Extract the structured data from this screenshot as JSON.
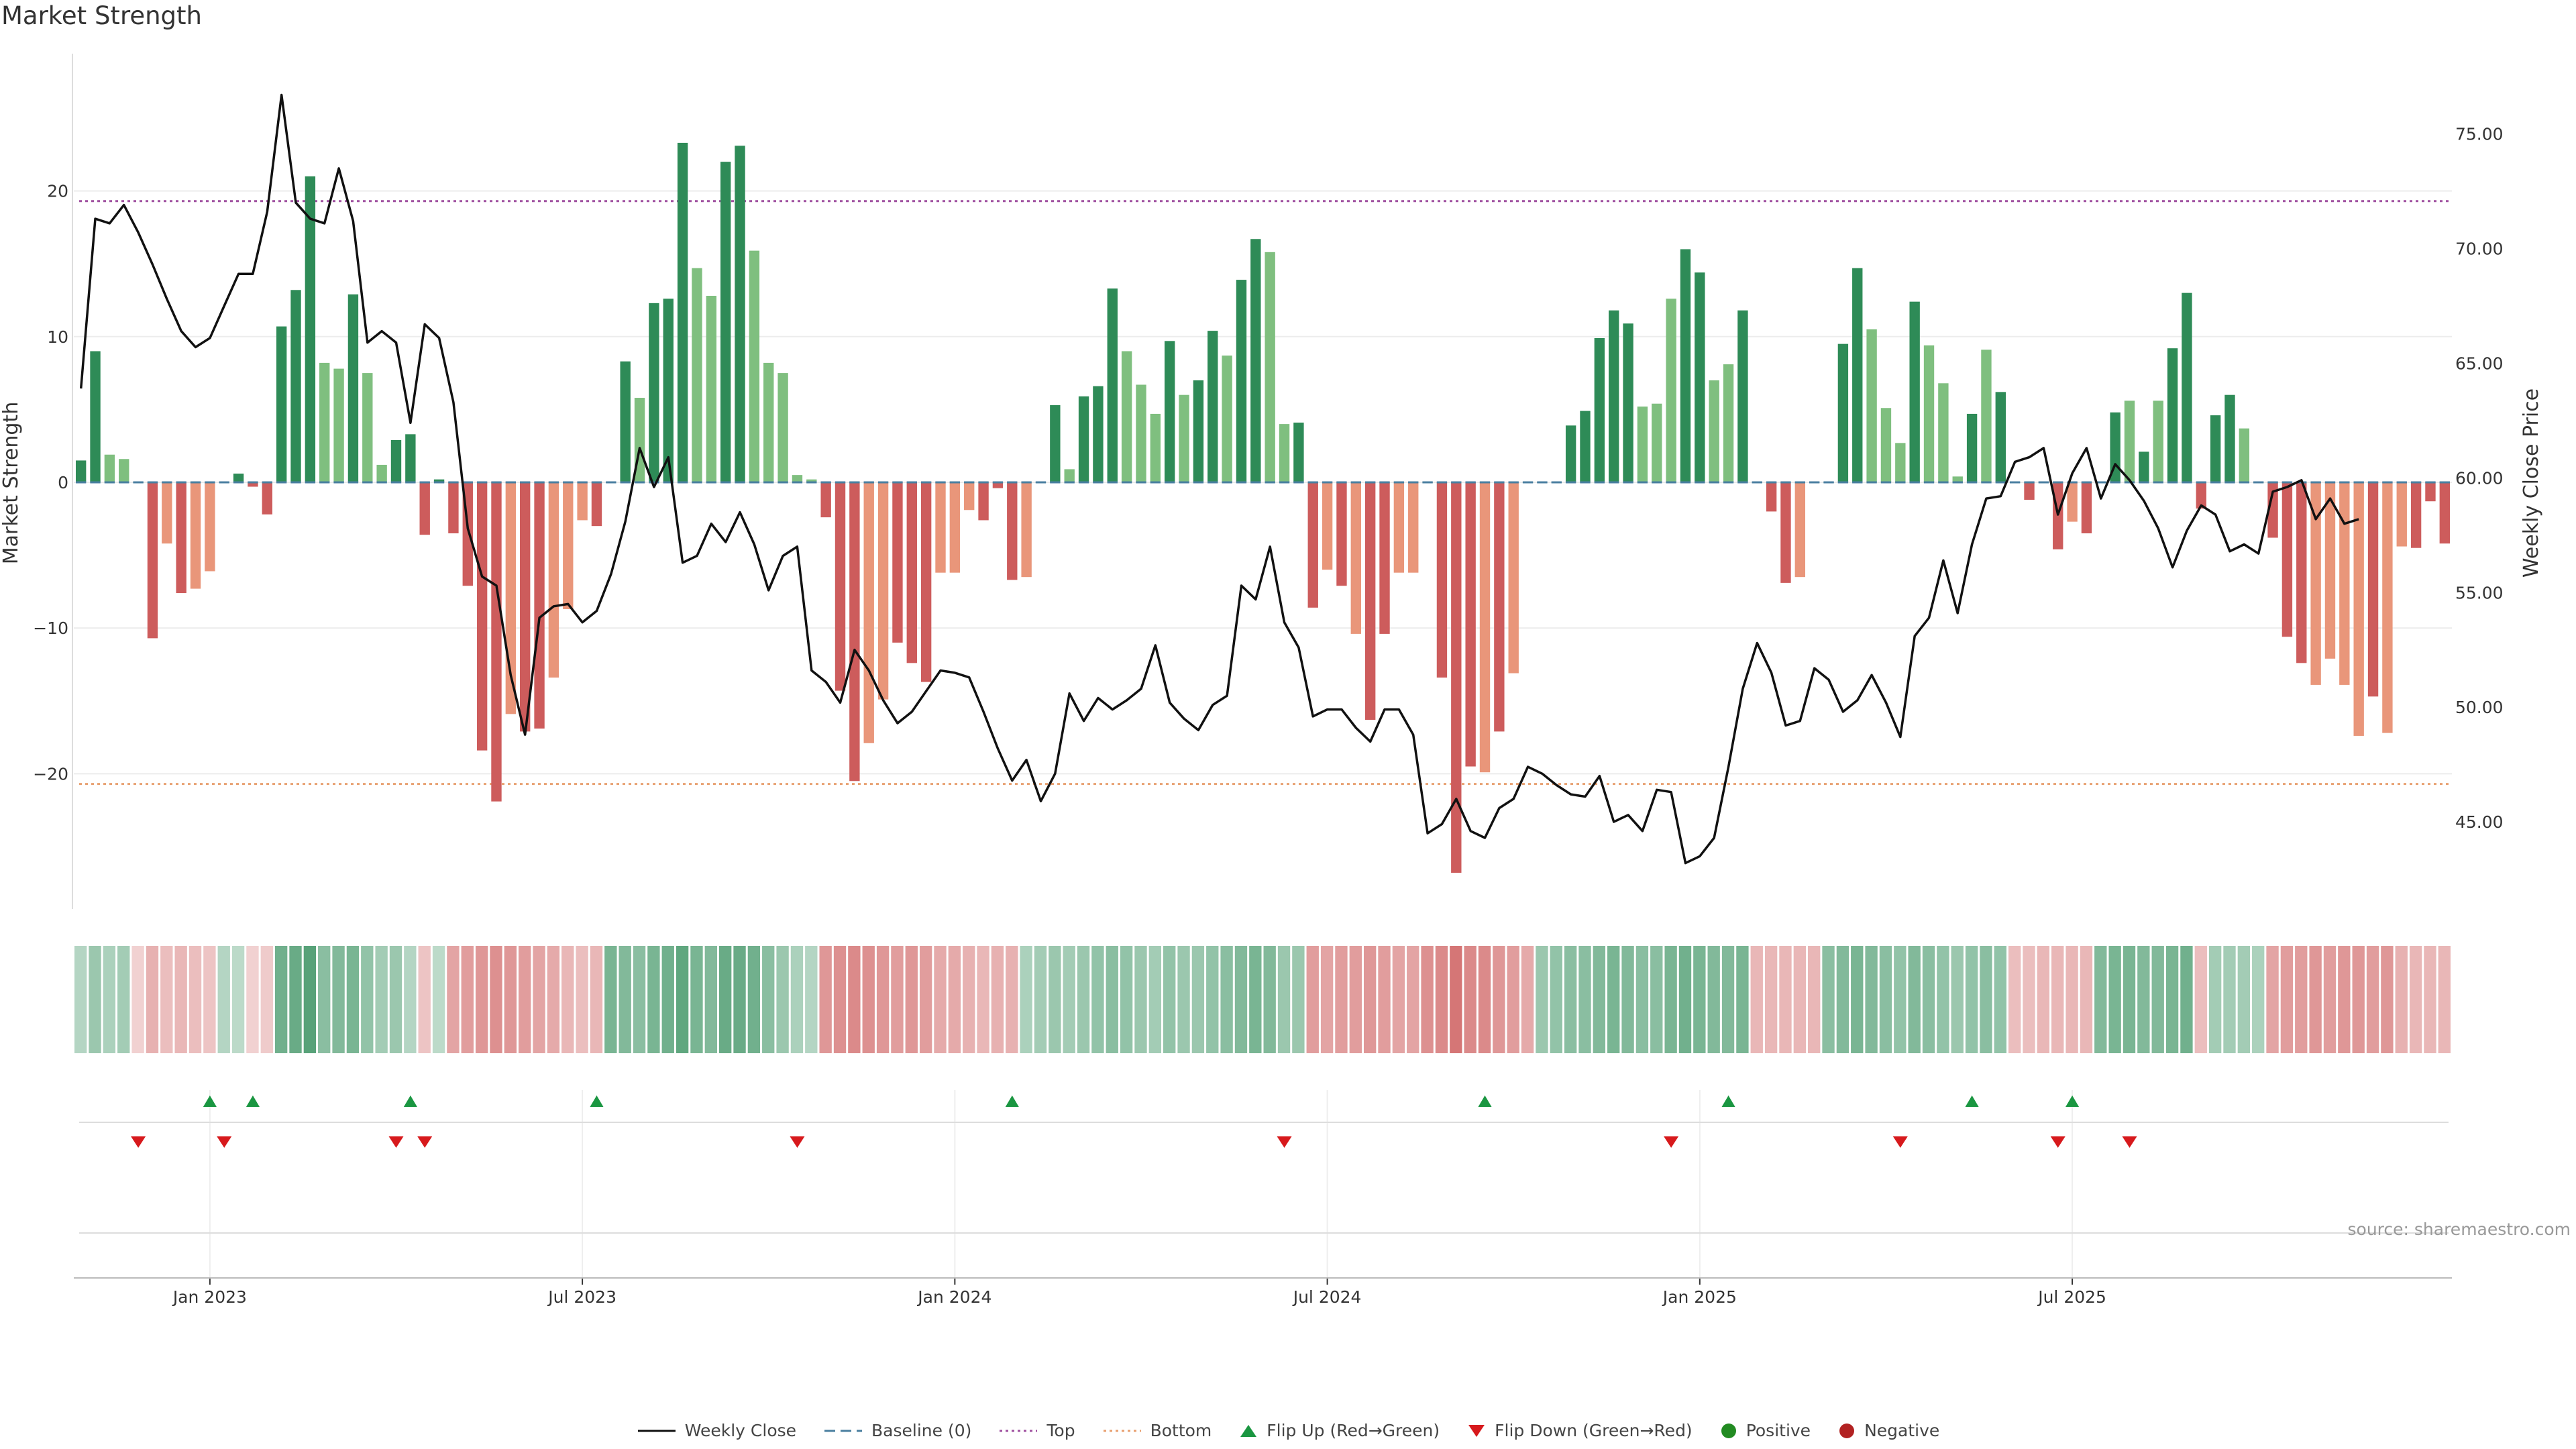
{
  "title": "Market Strength",
  "source": "source: sharemaestro.com",
  "chart_data": {
    "type": "bar",
    "title": "Market Strength",
    "ylabel_left": "Market Strength",
    "ylabel_right": "Weekly Close Price",
    "ylim_left": [
      -29.2,
      29.5
    ],
    "ylim_right": [
      41.2,
      78.5
    ],
    "yticks_left": [
      {
        "v": 20,
        "label": "20"
      },
      {
        "v": 10,
        "label": "10"
      },
      {
        "v": 0,
        "label": "0"
      },
      {
        "v": -10,
        "label": "−10"
      },
      {
        "v": -20,
        "label": "−20"
      }
    ],
    "yticks_right": [
      {
        "v": 75,
        "label": "75.00"
      },
      {
        "v": 70,
        "label": "70.00"
      },
      {
        "v": 65,
        "label": "65.00"
      },
      {
        "v": 60,
        "label": "60.00"
      },
      {
        "v": 55,
        "label": "55.00"
      },
      {
        "v": 50,
        "label": "50.00"
      },
      {
        "v": 45,
        "label": "45.00"
      }
    ],
    "x_ticks": [
      {
        "week": 9.5,
        "label": "Jan 2023"
      },
      {
        "week": 35.5,
        "label": "Jul 2023"
      },
      {
        "week": 61.5,
        "label": "Jan 2024"
      },
      {
        "week": 87.5,
        "label": "Jul 2024"
      },
      {
        "week": 113.5,
        "label": "Jan 2025"
      },
      {
        "week": 139.5,
        "label": "Jul 2025"
      }
    ],
    "top_threshold": 19.3,
    "bottom_threshold": -20.7,
    "strength": [
      1.5,
      9,
      1.9,
      1.6,
      0,
      -10.7,
      -4.2,
      -7.6,
      -7.3,
      -6.1,
      0,
      0.6,
      -0.3,
      -2.2,
      10.7,
      13.2,
      21,
      8.2,
      7.8,
      12.9,
      7.5,
      1.2,
      2.9,
      3.3,
      -3.6,
      0.2,
      -3.5,
      -7.1,
      -18.4,
      -21.9,
      -15.9,
      -17.1,
      -16.9,
      -13.4,
      -8.7,
      -2.6,
      -3,
      0,
      8.3,
      5.8,
      12.3,
      12.6,
      23.3,
      14.7,
      12.8,
      22,
      23.1,
      15.9,
      8.2,
      7.5,
      0.5,
      0.2,
      -2.4,
      -14.3,
      -20.5,
      -17.9,
      -14.9,
      -11,
      -12.4,
      -13.7,
      -6.2,
      -6.2,
      -1.9,
      -2.6,
      -0.4,
      -6.7,
      -6.5,
      0,
      5.3,
      0.9,
      5.9,
      6.6,
      13.3,
      9,
      6.7,
      4.7,
      9.7,
      6,
      7,
      10.4,
      8.7,
      13.9,
      16.7,
      15.8,
      4,
      4.1,
      -8.6,
      -6,
      -7.1,
      -10.4,
      -16.3,
      -10.4,
      -6.2,
      -6.2,
      0,
      -13.4,
      -26.8,
      -19.5,
      -19.9,
      -17.1,
      -13.1,
      0,
      0,
      0,
      3.9,
      4.9,
      9.9,
      11.8,
      10.9,
      5.2,
      5.4,
      12.6,
      16,
      14.4,
      7,
      8.1,
      11.8,
      0,
      -2,
      -6.9,
      -6.5,
      0,
      0,
      9.5,
      14.7,
      10.5,
      5.1,
      2.7,
      12.4,
      9.4,
      6.8,
      0.4,
      4.7,
      9.1,
      6.2,
      0,
      -1.2,
      0,
      -4.6,
      -2.7,
      -3.5,
      0,
      4.8,
      5.6,
      2.1,
      5.6,
      9.2,
      13,
      -1.8,
      4.6,
      6,
      3.7,
      0,
      -3.8,
      -10.6,
      -12.4,
      -13.9,
      -12.1,
      -13.9,
      -17.4,
      -14.7,
      -17.2,
      -4.4,
      -4.5,
      -1.3,
      -4.2
    ],
    "strength_shade": [
      0,
      0,
      1,
      1,
      0,
      0,
      1,
      0,
      1,
      1,
      0,
      0,
      0,
      0,
      0,
      0,
      0,
      1,
      1,
      0,
      1,
      1,
      0,
      0,
      0,
      0,
      0,
      0,
      0,
      0,
      1,
      0,
      0,
      1,
      1,
      1,
      0,
      0,
      0,
      1,
      0,
      0,
      0,
      1,
      1,
      0,
      0,
      1,
      1,
      1,
      1,
      1,
      0,
      0,
      0,
      1,
      1,
      0,
      0,
      0,
      1,
      1,
      1,
      0,
      0,
      0,
      1,
      0,
      0,
      1,
      0,
      0,
      0,
      1,
      1,
      1,
      0,
      1,
      0,
      0,
      1,
      0,
      0,
      1,
      1,
      0,
      0,
      1,
      0,
      1,
      0,
      0,
      1,
      1,
      1,
      0,
      0,
      0,
      1,
      0,
      1,
      1,
      0,
      0,
      0,
      0,
      0,
      0,
      0,
      1,
      1,
      1,
      0,
      0,
      1,
      1,
      0,
      0,
      0,
      0,
      1,
      0,
      0,
      0,
      0,
      1,
      1,
      1,
      0,
      1,
      1,
      1,
      0,
      1,
      0,
      0,
      0,
      1,
      0,
      1,
      0,
      0,
      0,
      1,
      0,
      1,
      0,
      0,
      0,
      0,
      0,
      1,
      0,
      0,
      0,
      0,
      1,
      1,
      1,
      1,
      0,
      1,
      1,
      0,
      0,
      0,
      0,
      0,
      0,
      0
    ],
    "close": [
      63.9,
      71.3,
      71.1,
      71.9,
      70.7,
      69.3,
      67.8,
      66.4,
      65.7,
      66.1,
      67.5,
      68.9,
      68.9,
      71.6,
      76.7,
      72,
      71.3,
      71.1,
      73.5,
      71.2,
      65.9,
      66.4,
      65.9,
      62.4,
      66.7,
      66.1,
      63.3,
      57.8,
      55.7,
      55.3,
      51.4,
      48.8,
      53.9,
      54.4,
      54.5,
      53.7,
      54.2,
      55.8,
      58.1,
      61.3,
      59.6,
      60.9,
      56.3,
      56.6,
      58,
      57.2,
      58.5,
      57.1,
      55.1,
      56.6,
      57,
      51.6,
      51.1,
      50.2,
      52.5,
      51.6,
      50.3,
      49.3,
      49.8,
      50.7,
      51.6,
      51.5,
      51.3,
      49.8,
      48.2,
      46.8,
      47.7,
      45.9,
      47.1,
      50.6,
      49.4,
      50.4,
      49.9,
      50.3,
      50.8,
      52.7,
      50.2,
      49.5,
      49,
      50.1,
      50.5,
      55.3,
      54.7,
      57,
      53.7,
      52.6,
      49.6,
      49.9,
      49.9,
      49.1,
      48.5,
      49.9,
      49.9,
      48.8,
      44.5,
      44.9,
      46,
      44.6,
      44.3,
      45.6,
      46,
      47.4,
      47.1,
      46.6,
      46.2,
      46.1,
      47,
      45,
      45.3,
      44.6,
      46.4,
      46.3,
      43.2,
      43.5,
      44.3,
      47.4,
      50.8,
      52.8,
      51.5,
      49.2,
      49.4,
      51.7,
      51.2,
      49.8,
      50.3,
      51.4,
      50.2,
      48.7,
      53.1,
      53.9,
      56.4,
      54.1,
      57.1,
      59.1,
      59.2,
      60.7,
      60.9,
      61.3,
      58.4,
      60.2,
      61.3,
      59.1,
      60.6,
      59.9,
      59,
      57.8,
      56.1,
      57.7,
      58.8,
      58.4,
      56.8,
      57.1,
      56.7,
      59.4,
      59.6,
      59.9,
      58.2,
      59.1,
      58,
      58.2
    ]
  },
  "heat_strip": [
    0.2,
    0.35,
    0.25,
    0.3,
    -0.1,
    -0.35,
    -0.25,
    -0.3,
    -0.25,
    -0.2,
    0.2,
    0.15,
    -0.1,
    -0.15,
    0.6,
    0.65,
    0.75,
    0.45,
    0.5,
    0.55,
    0.4,
    0.3,
    0.35,
    0.2,
    -0.2,
    0.15,
    -0.45,
    -0.5,
    -0.55,
    -0.6,
    -0.55,
    -0.5,
    -0.45,
    -0.4,
    -0.3,
    -0.25,
    -0.3,
    0.55,
    0.5,
    0.45,
    0.55,
    0.6,
    0.7,
    0.55,
    0.5,
    0.65,
    0.65,
    0.6,
    0.45,
    0.35,
    0.25,
    0.2,
    -0.55,
    -0.6,
    -0.65,
    -0.6,
    -0.55,
    -0.5,
    -0.55,
    -0.5,
    -0.4,
    -0.4,
    -0.35,
    -0.3,
    -0.35,
    -0.35,
    0.25,
    0.3,
    0.35,
    0.3,
    0.35,
    0.4,
    0.45,
    0.4,
    0.35,
    0.3,
    0.4,
    0.35,
    0.35,
    0.4,
    0.45,
    0.5,
    0.55,
    0.5,
    0.35,
    0.35,
    -0.5,
    -0.45,
    -0.5,
    -0.5,
    -0.55,
    -0.5,
    -0.45,
    -0.45,
    -0.6,
    -0.65,
    -0.8,
    -0.65,
    -0.65,
    -0.55,
    -0.5,
    -0.4,
    0.35,
    0.4,
    0.45,
    0.45,
    0.5,
    0.55,
    0.5,
    0.45,
    0.45,
    0.55,
    0.6,
    0.55,
    0.5,
    0.5,
    0.55,
    -0.3,
    -0.3,
    -0.3,
    -0.3,
    -0.3,
    0.45,
    0.5,
    0.55,
    0.5,
    0.45,
    0.4,
    0.5,
    0.45,
    0.4,
    0.35,
    0.4,
    0.45,
    0.4,
    -0.25,
    -0.25,
    -0.3,
    -0.3,
    -0.3,
    -0.3,
    0.5,
    0.55,
    0.55,
    0.5,
    0.5,
    0.55,
    0.6,
    -0.25,
    0.3,
    0.3,
    0.3,
    0.25,
    -0.45,
    -0.5,
    -0.5,
    -0.55,
    -0.5,
    -0.55,
    -0.55,
    -0.5,
    -0.55,
    -0.35,
    -0.3,
    -0.3,
    -0.3
  ],
  "flip_up_weeks": [
    9,
    12,
    23,
    36,
    65,
    98,
    115,
    132,
    139
  ],
  "flip_down_weeks": [
    4,
    10,
    22,
    24,
    50,
    84,
    111,
    127,
    138,
    143
  ],
  "colors": {
    "green_dark": "#2e8b57",
    "green_light": "#7fbf7f",
    "red_dark": "#cd5c5c",
    "red_light": "#e9967a",
    "baseline": "#4a7fa0",
    "top_line": "#a050a0",
    "bottom_line": "#e8a070",
    "flip_up": "#1a9641",
    "flip_down": "#d7191c",
    "positive": "#228b22",
    "negative": "#b22222",
    "price_line": "#111111"
  },
  "legend": [
    {
      "key": "weekly_close",
      "label": "Weekly Close"
    },
    {
      "key": "baseline",
      "label": "Baseline (0)"
    },
    {
      "key": "top",
      "label": "Top"
    },
    {
      "key": "bottom",
      "label": "Bottom"
    },
    {
      "key": "flip_up",
      "label": "Flip Up (Red→Green)"
    },
    {
      "key": "flip_down",
      "label": "Flip Down (Green→Red)"
    },
    {
      "key": "positive",
      "label": "Positive"
    },
    {
      "key": "negative",
      "label": "Negative"
    }
  ]
}
